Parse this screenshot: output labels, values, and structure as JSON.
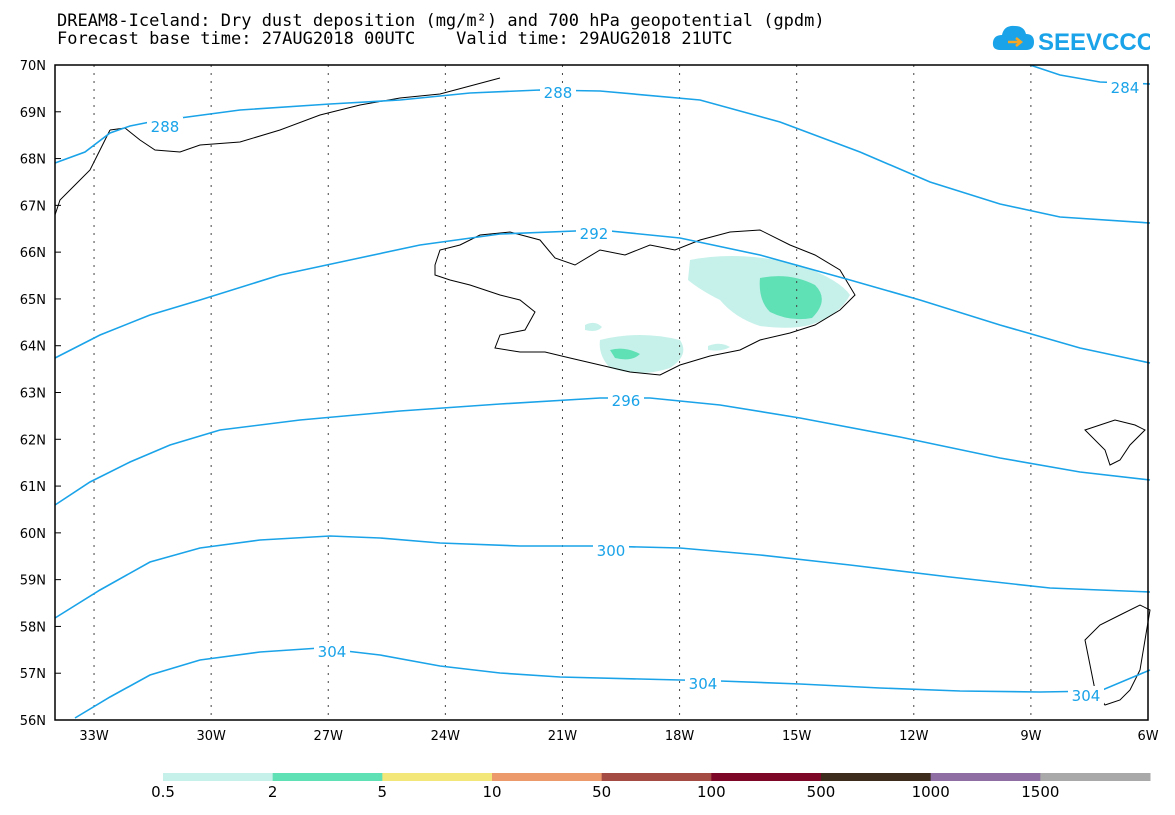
{
  "title": {
    "line1": "DREAM8-Iceland: Dry dust deposition (mg/m²) and 700 hPa geopotential (gpdm)",
    "line2": "Forecast base time: 27AUG2018 00UTC    Valid time: 29AUG2018 21UTC"
  },
  "logo": {
    "text": "SEEVCCC",
    "icon": "cloud-arrow-icon",
    "color": "#1aa3e8"
  },
  "map": {
    "lat_labels": [
      "70N",
      "69N",
      "68N",
      "67N",
      "66N",
      "65N",
      "64N",
      "63N",
      "62N",
      "61N",
      "60N",
      "59N",
      "58N",
      "57N",
      "56N"
    ],
    "lon_labels": [
      "33W",
      "30W",
      "27W",
      "24W",
      "21W",
      "18W",
      "15W",
      "12W",
      "9W",
      "6W"
    ],
    "contour_color": "#1aa3e8",
    "contours": [
      {
        "level": "288",
        "labels": [
          "288",
          "288"
        ]
      },
      {
        "level": "284",
        "labels": [
          "284"
        ]
      },
      {
        "level": "292",
        "labels": [
          "292"
        ]
      },
      {
        "level": "296",
        "labels": [
          "296"
        ]
      },
      {
        "level": "300",
        "labels": [
          "300"
        ]
      },
      {
        "level": "304",
        "labels": [
          "304",
          "304",
          "304"
        ]
      }
    ]
  },
  "legend": {
    "labels": [
      "0.5",
      "2",
      "5",
      "10",
      "50",
      "100",
      "500",
      "1000",
      "1500"
    ],
    "colors": [
      "#c6f1ea",
      "#5fe0b5",
      "#f3e77a",
      "#ec9a6c",
      "#a44c43",
      "#7d0727",
      "#3d2b1b",
      "#8e6ea3",
      "#a9a9a9"
    ]
  }
}
